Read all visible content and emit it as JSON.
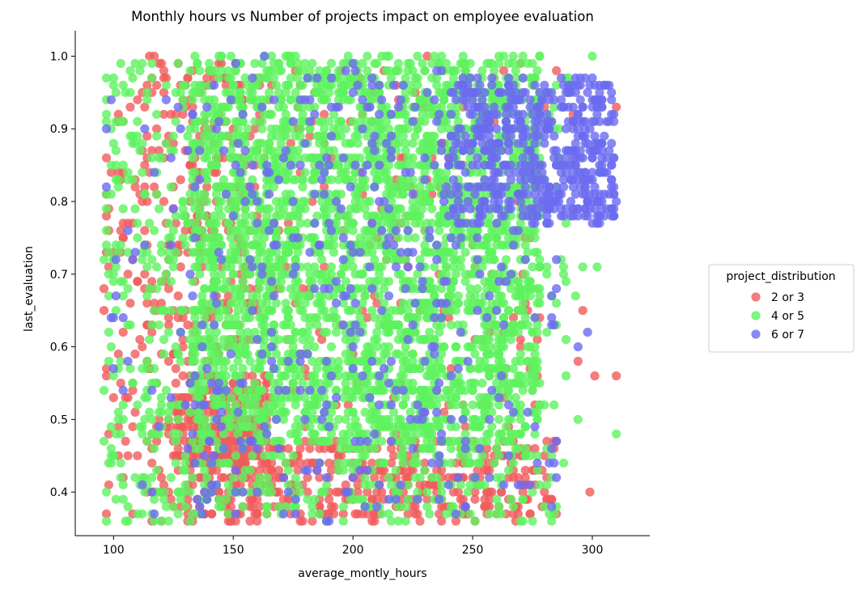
{
  "chart_data": {
    "type": "scatter",
    "title": "Monthly hours vs Number of projects impact on employee evaluation",
    "xlabel": "average_montly_hours",
    "ylabel": "last_evaluation",
    "xlim": [
      84,
      324
    ],
    "ylim": [
      0.34,
      1.035
    ],
    "xticks": [
      100,
      150,
      200,
      250,
      300
    ],
    "yticks": [
      0.4,
      0.5,
      0.6,
      0.7,
      0.8,
      0.9,
      1.0
    ],
    "legend": {
      "title": "project_distribution",
      "placement": "right",
      "entries": [
        "2 or 3",
        "4 or 5",
        "6 or 7"
      ]
    },
    "grid": false,
    "series": [
      {
        "name": "2 or 3",
        "color": "#f15b5b",
        "regions": [
          {
            "x": [
              96,
              160
            ],
            "y": [
              0.36,
              1.0
            ],
            "count": 380
          },
          {
            "x": [
              125,
              165
            ],
            "y": [
              0.44,
              0.56
            ],
            "count": 220
          },
          {
            "x": [
              130,
              285
            ],
            "y": [
              0.36,
              0.47
            ],
            "count": 430
          },
          {
            "x": [
              130,
              280
            ],
            "y": [
              0.47,
              1.0
            ],
            "count": 260
          }
        ],
        "points": [
          {
            "x": 285,
            "y": 0.98
          },
          {
            "x": 292,
            "y": 0.92
          },
          {
            "x": 310,
            "y": 0.93
          },
          {
            "x": 296,
            "y": 0.65
          },
          {
            "x": 294,
            "y": 0.58
          },
          {
            "x": 301,
            "y": 0.56
          },
          {
            "x": 310,
            "y": 0.56
          },
          {
            "x": 299,
            "y": 0.4
          },
          {
            "x": 279,
            "y": 0.38
          }
        ]
      },
      {
        "name": "4 or 5",
        "color": "#5ef25e",
        "regions": [
          {
            "x": [
              96,
              132
            ],
            "y": [
              0.36,
              1.0
            ],
            "count": 260
          },
          {
            "x": [
              132,
              278
            ],
            "y": [
              0.46,
              1.0
            ],
            "count": 2900
          },
          {
            "x": [
              132,
              285
            ],
            "y": [
              0.36,
              0.46
            ],
            "count": 220
          },
          {
            "x": [
              275,
              292
            ],
            "y": [
              0.5,
              1.0
            ],
            "count": 40
          }
        ],
        "points": [
          {
            "x": 300,
            "y": 1.0
          },
          {
            "x": 296,
            "y": 0.71
          },
          {
            "x": 302,
            "y": 0.71
          },
          {
            "x": 294,
            "y": 0.5
          },
          {
            "x": 310,
            "y": 0.48
          },
          {
            "x": 97,
            "y": 0.36
          },
          {
            "x": 293,
            "y": 0.67
          },
          {
            "x": 288,
            "y": 0.44
          }
        ]
      },
      {
        "name": "6 or 7",
        "color": "#6b6bf0",
        "regions": [
          {
            "x": [
              240,
              310
            ],
            "y": [
              0.77,
              0.97
            ],
            "count": 560
          },
          {
            "x": [
              132,
              240
            ],
            "y": [
              0.36,
              1.0
            ],
            "count": 330
          },
          {
            "x": [
              96,
              132
            ],
            "y": [
              0.36,
              0.95
            ],
            "count": 35
          },
          {
            "x": [
              240,
              285
            ],
            "y": [
              0.36,
              0.77
            ],
            "count": 60
          }
        ],
        "points": [
          {
            "x": 298,
            "y": 0.62
          },
          {
            "x": 294,
            "y": 0.6
          },
          {
            "x": 282,
            "y": 0.44
          },
          {
            "x": 285,
            "y": 0.42
          },
          {
            "x": 189,
            "y": 0.36
          },
          {
            "x": 190,
            "y": 0.36
          }
        ]
      }
    ]
  }
}
